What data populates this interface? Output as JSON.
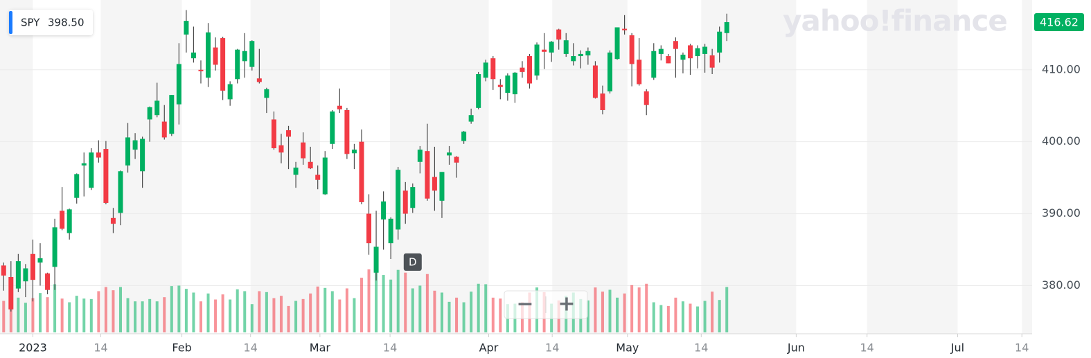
{
  "chart_data": {
    "type": "candlestick",
    "watermark": "yahoo!finance",
    "tooltip": {
      "value": 398.5,
      "label": "398.50"
    },
    "last_price": 416.62,
    "zoom_out": "−",
    "zoom_in": "+",
    "up_color": "#00b061",
    "down_color": "#f23b45",
    "last_price_color": "#00b061",
    "grid": true,
    "xlim": [
      -0.5,
      140.8
    ],
    "xticks": [
      {
        "value": 4,
        "label": "2023"
      },
      {
        "value": 13.3,
        "label": "14"
      },
      {
        "value": 24.4,
        "label": "Feb"
      },
      {
        "value": 33.8,
        "label": "14"
      },
      {
        "value": 43.3,
        "label": "Mar"
      },
      {
        "value": 52.9,
        "label": "14"
      },
      {
        "value": 66.4,
        "label": "Apr"
      },
      {
        "value": 75.1,
        "label": "14"
      },
      {
        "value": 85.4,
        "label": "May"
      },
      {
        "value": 95.5,
        "label": "14"
      },
      {
        "value": 108.5,
        "label": "Jun"
      },
      {
        "value": 118.2,
        "label": "14"
      },
      {
        "value": 130.6,
        "label": "Jul"
      },
      {
        "value": 139.4,
        "label": "14"
      }
    ],
    "ylim": [
      373.5,
      419.7
    ],
    "yticks": [
      {
        "value": 380,
        "label": "380.00"
      },
      {
        "value": 390,
        "label": "390.00"
      },
      {
        "value": 400,
        "label": "400.00"
      },
      {
        "value": 410,
        "label": "410.00"
      }
    ],
    "events": [
      {
        "at": 56,
        "label": "D"
      }
    ],
    "series": [
      {
        "name": "SPY",
        "open": [
          382.8,
          381.2,
          379.6,
          380.6,
          384.4,
          383.2,
          381.7,
          382.6,
          390.4,
          387.3,
          392.2,
          396.7,
          393.6,
          398.5,
          399.0,
          389.4,
          390.1,
          396.7,
          398.9,
          395.9,
          403.1,
          403.7,
          402.8,
          401.1,
          405.2,
          414.9,
          411.6,
          410.0,
          408.9,
          413.1,
          414.4,
          405.9,
          408.7,
          411.2,
          410.4,
          408.8,
          406.1,
          403.1,
          399.5,
          401.6,
          395.4,
          399.9,
          397.2,
          395.4,
          392.7,
          399.7,
          405.0,
          404.4,
          398.4,
          400.0,
          390.0,
          381.8,
          389.2,
          385.9,
          387.8,
          393.2,
          390.8,
          397.2,
          398.7,
          395.1,
          391.8,
          398.1,
          397.9,
          400.1,
          402.8,
          404.7,
          408.9,
          411.6,
          407.9,
          406.8,
          406.6,
          410.3,
          411.9,
          409.2,
          412.8,
          412.4,
          415.6,
          412.2,
          411.2,
          411.9,
          412.0,
          410.6,
          406.7,
          407.0,
          411.5,
          415.7,
          414.8,
          411.4,
          407.0,
          408.9,
          412.2,
          411.9,
          414.0,
          411.4,
          413.4,
          411.9,
          412.2,
          412.0,
          412.4,
          415.1
        ],
        "high": [
          383.2,
          383.4,
          384.4,
          383.0,
          386.4,
          385.9,
          381.8,
          389.3,
          393.7,
          390.7,
          395.6,
          398.5,
          399.1,
          400.2,
          400.1,
          390.8,
          396.0,
          402.6,
          401.2,
          400.7,
          404.9,
          408.2,
          405.1,
          406.5,
          413.7,
          418.3,
          416.0,
          411.3,
          416.5,
          414.5,
          414.6,
          408.4,
          412.9,
          415.1,
          414.1,
          412.9,
          407.5,
          404.2,
          401.1,
          402.2,
          397.2,
          401.3,
          399.3,
          396.7,
          398.7,
          404.4,
          407.4,
          404.7,
          399.7,
          401.7,
          392.7,
          390.4,
          393.1,
          389.5,
          396.5,
          394.4,
          394.2,
          399.4,
          402.5,
          399.3,
          395.8,
          399.4,
          398.0,
          401.5,
          404.6,
          409.7,
          411.4,
          411.9,
          408.7,
          409.5,
          409.7,
          411.2,
          412.2,
          413.8,
          415.1,
          414.0,
          415.7,
          415.1,
          413.7,
          412.7,
          413.1,
          411.2,
          407.8,
          412.7,
          415.9,
          417.6,
          415.1,
          414.4,
          407.3,
          413.7,
          413.4,
          412.2,
          414.5,
          412.4,
          413.6,
          413.4,
          413.6,
          412.9,
          416.0,
          417.8
        ],
        "low": [
          379.3,
          376.4,
          379.1,
          378.4,
          377.8,
          380.0,
          378.8,
          379.4,
          387.7,
          386.4,
          391.4,
          392.4,
          393.3,
          397.1,
          391.3,
          387.3,
          388.4,
          395.7,
          397.6,
          393.6,
          400.0,
          403.4,
          400.3,
          400.8,
          402.4,
          412.4,
          411.0,
          408.1,
          407.6,
          409.9,
          405.8,
          405.0,
          408.1,
          408.9,
          409.9,
          408.1,
          404.0,
          398.9,
          397.0,
          396.2,
          393.6,
          396.8,
          396.2,
          393.4,
          392.6,
          399.0,
          404.0,
          397.6,
          396.2,
          391.3,
          384.3,
          380.7,
          385.0,
          383.7,
          386.4,
          388.6,
          390.1,
          395.6,
          391.8,
          390.4,
          389.4,
          396.8,
          395.0,
          399.7,
          402.5,
          404.5,
          408.4,
          407.2,
          405.9,
          405.7,
          405.4,
          408.9,
          407.4,
          408.6,
          410.1,
          411.1,
          412.8,
          411.8,
          410.6,
          410.2,
          410.7,
          406.0,
          403.8,
          406.7,
          411.4,
          414.9,
          407.7,
          407.8,
          403.7,
          408.6,
          411.3,
          410.9,
          408.9,
          409.5,
          409.3,
          410.2,
          409.6,
          409.4,
          411.0,
          414.0
        ],
        "close": [
          381.4,
          376.7,
          383.4,
          382.4,
          380.8,
          383.8,
          379.4,
          388.1,
          387.9,
          390.6,
          395.5,
          397.0,
          398.5,
          397.8,
          391.5,
          388.6,
          395.9,
          400.6,
          400.2,
          400.4,
          404.8,
          405.7,
          400.6,
          406.5,
          410.8,
          416.8,
          412.4,
          409.8,
          415.2,
          410.7,
          407.1,
          408.0,
          412.8,
          412.6,
          414.0,
          408.3,
          407.3,
          399.1,
          398.5,
          400.7,
          396.4,
          397.7,
          396.3,
          394.7,
          397.8,
          404.2,
          404.5,
          398.3,
          398.9,
          391.6,
          385.9,
          385.4,
          391.7,
          389.3,
          396.1,
          390.0,
          393.7,
          398.9,
          392.1,
          393.2,
          395.8,
          398.5,
          397.1,
          401.4,
          403.7,
          409.4,
          411.0,
          408.7,
          407.6,
          409.2,
          409.6,
          409.7,
          408.1,
          413.5,
          412.5,
          413.9,
          414.2,
          414.1,
          411.9,
          412.2,
          412.6,
          406.1,
          404.4,
          412.4,
          415.9,
          415.5,
          410.8,
          408.0,
          405.1,
          412.6,
          412.9,
          410.9,
          412.9,
          412.1,
          411.6,
          413.0,
          413.2,
          410.3,
          415.3,
          416.62
        ],
        "volume": [
          68,
          85,
          75,
          64,
          74,
          85,
          76,
          104,
          73,
          65,
          79,
          73,
          72,
          89,
          98,
          91,
          98,
          74,
          67,
          67,
          72,
          67,
          76,
          100,
          101,
          94,
          86,
          67,
          84,
          71,
          82,
          71,
          93,
          89,
          61,
          89,
          87,
          74,
          79,
          57,
          68,
          72,
          84,
          99,
          96,
          89,
          71,
          95,
          74,
          118,
          136,
          157,
          124,
          114,
          135,
          129,
          95,
          101,
          126,
          90,
          86,
          66,
          75,
          65,
          88,
          105,
          104,
          75,
          73,
          61,
          62,
          65,
          86,
          97,
          87,
          62,
          69,
          79,
          86,
          72,
          69,
          97,
          88,
          92,
          75,
          84,
          102,
          97,
          105,
          65,
          59,
          57,
          75,
          67,
          62,
          56,
          68,
          88,
          70,
          98
        ]
      }
    ]
  }
}
